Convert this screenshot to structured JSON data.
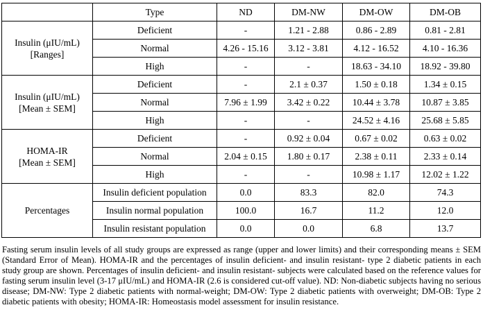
{
  "colors": {
    "border": "#000000",
    "text": "#000000",
    "background": "#ffffff"
  },
  "table": {
    "header": {
      "corner": "",
      "type": "Type",
      "cols": [
        "ND",
        "DM-NW",
        "DM-OW",
        "DM-OB"
      ]
    },
    "groups": [
      {
        "label_line1": "Insulin (μIU/mL)",
        "label_line2": "[Ranges]",
        "rows": [
          {
            "type": "Deficient",
            "values": [
              "-",
              "1.21 - 2.88",
              "0.86 - 2.89",
              "0.81 - 2.81"
            ]
          },
          {
            "type": "Normal",
            "values": [
              "4.26 - 15.16",
              "3.12 - 3.81",
              "4.12 - 16.52",
              "4.10 - 16.36"
            ]
          },
          {
            "type": "High",
            "values": [
              "-",
              "-",
              "18.63 - 34.10",
              "18.92 - 39.80"
            ]
          }
        ]
      },
      {
        "label_line1": "Insulin (μIU/mL)",
        "label_line2": "[Mean ± SEM]",
        "rows": [
          {
            "type": "Deficient",
            "values": [
              "-",
              "2.1 ± 0.37",
              "1.50 ± 0.18",
              "1.34 ± 0.15"
            ]
          },
          {
            "type": "Normal",
            "values": [
              "7.96 ± 1.99",
              "3.42 ± 0.22",
              "10.44 ± 3.78",
              "10.87 ± 3.85"
            ]
          },
          {
            "type": "High",
            "values": [
              "-",
              "-",
              "24.52 ± 4.16",
              "25.68 ± 5.85"
            ]
          }
        ]
      },
      {
        "label_line1": "HOMA-IR",
        "label_line2": "[Mean ± SEM]",
        "rows": [
          {
            "type": "Deficient",
            "values": [
              "-",
              "0.92 ± 0.04",
              "0.67 ± 0.02",
              "0.63 ± 0.02"
            ]
          },
          {
            "type": "Normal",
            "values": [
              "2.04 ± 0.15",
              "1.80 ± 0.17",
              "2.38 ± 0.11",
              "2.33 ± 0.14"
            ]
          },
          {
            "type": "High",
            "values": [
              "-",
              "-",
              "10.98 ± 1.17",
              "12.02 ± 1.22"
            ]
          }
        ]
      },
      {
        "label_line1": "Percentages",
        "label_line2": "",
        "rows": [
          {
            "type": "Insulin deficient population",
            "values": [
              "0.0",
              "83.3",
              "82.0",
              "74.3"
            ]
          },
          {
            "type": "Insulin normal population",
            "values": [
              "100.0",
              "16.7",
              "11.2",
              "12.0"
            ]
          },
          {
            "type": "Insulin resistant population",
            "values": [
              "0.0",
              "0.0",
              "6.8",
              "13.7"
            ]
          }
        ]
      }
    ]
  },
  "footnote": "Fasting serum insulin levels of all study groups are expressed as range (upper and lower limits) and their corresponding means ± SEM (Standard Error of Mean). HOMA-IR and the percentages of insulin deficient- and insulin resistant- type 2 diabetic patients in each study group are shown. Percentages of insulin deficient- and insulin resistant- subjects were calculated based on the reference values for fasting serum insulin level (3-17 μIU/mL) and HOMA-IR (2.6 is considered cut-off value). ND: Non-diabetic subjects having no serious disease; DM-NW: Type 2 diabetic patients with normal-weight; DM-OW: Type 2 diabetic patients with overweight; DM-OB: Type 2 diabetic patients with obesity; HOMA-IR: Homeostasis model assessment for insulin resistance."
}
